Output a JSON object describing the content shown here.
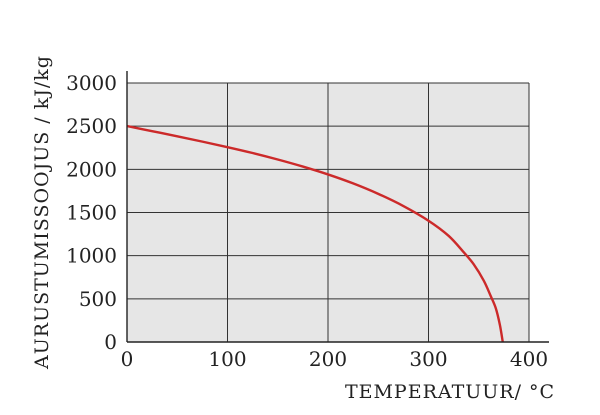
{
  "chart_data": {
    "type": "line",
    "xlabel": "TEMPERATUUR/ °C",
    "ylabel": "AURUSTUMISSOOJUS / kJ/kg",
    "xlim": [
      0,
      400
    ],
    "ylim": [
      0,
      3000
    ],
    "xticks": [
      0,
      100,
      200,
      300,
      400
    ],
    "yticks": [
      0,
      500,
      1000,
      1500,
      2000,
      2500,
      3000
    ],
    "grid": true,
    "background_color": "#e6e6e6",
    "line_color": "#cc2a2a",
    "series": [
      {
        "x": [
          0,
          25,
          50,
          75,
          100,
          125,
          150,
          175,
          200,
          225,
          250,
          275,
          300,
          320,
          335,
          345,
          355,
          362,
          367,
          371,
          373.9
        ],
        "values": [
          2501,
          2442,
          2383,
          2321,
          2257,
          2189,
          2114,
          2032,
          1941,
          1837,
          1716,
          1575,
          1405,
          1230,
          1040,
          900,
          710,
          530,
          390,
          200,
          0
        ]
      }
    ]
  }
}
